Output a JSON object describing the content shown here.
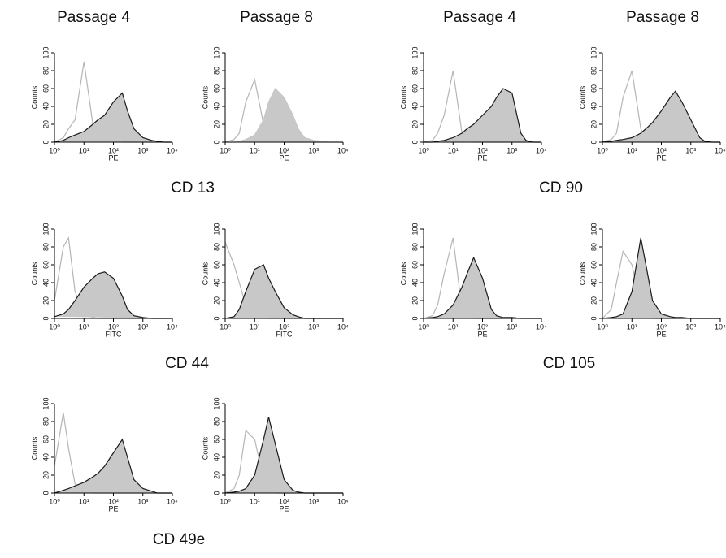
{
  "column_headers": [
    "Passage 4",
    "Passage 8",
    "Passage 4",
    "Passage 8"
  ],
  "marker_labels": [
    "CD 13",
    "CD 90",
    "CD 44",
    "CD 105",
    "CD 49e"
  ],
  "chart_data": [
    {
      "type": "area",
      "x_label": "PE",
      "y_label": "Counts",
      "log_x": true,
      "xlim": [
        1,
        10000
      ],
      "ylim": [
        0,
        100
      ],
      "xticks": [
        {
          "value": 1,
          "label": "10⁰"
        },
        {
          "value": 10,
          "label": "10¹"
        },
        {
          "value": 100,
          "label": "10²"
        },
        {
          "value": 1000,
          "label": "10³"
        },
        {
          "value": 10000,
          "label": "10⁴"
        }
      ],
      "yticks": [
        0,
        20,
        40,
        60,
        80,
        100
      ],
      "x": [
        1,
        2,
        3,
        5,
        10,
        20,
        30,
        50,
        100,
        200,
        300,
        500,
        1000,
        2000,
        3000,
        5000,
        10000
      ],
      "series": [
        {
          "color": "#b5b5b5",
          "fill": "none",
          "values": [
            0,
            5,
            15,
            25,
            90,
            20,
            5,
            2,
            1,
            0,
            0,
            0,
            0,
            0,
            0,
            0,
            0
          ]
        },
        {
          "color": "#1a1a1a",
          "fill": "#c8c8c8",
          "values": [
            0,
            2,
            5,
            8,
            12,
            20,
            25,
            30,
            45,
            55,
            35,
            15,
            5,
            2,
            1,
            0,
            0
          ]
        }
      ]
    },
    {
      "type": "area",
      "x_label": "PE",
      "y_label": "Counts",
      "log_x": true,
      "xlim": [
        1,
        10000
      ],
      "ylim": [
        0,
        100
      ],
      "xticks": [
        {
          "value": 1,
          "label": "10⁰"
        },
        {
          "value": 10,
          "label": "10¹"
        },
        {
          "value": 100,
          "label": "10²"
        },
        {
          "value": 1000,
          "label": "10³"
        },
        {
          "value": 10000,
          "label": "10⁴"
        }
      ],
      "yticks": [
        0,
        20,
        40,
        60,
        80,
        100
      ],
      "x": [
        1,
        2,
        3,
        5,
        10,
        20,
        30,
        50,
        100,
        200,
        300,
        500,
        1000,
        2000,
        3000,
        5000,
        10000
      ],
      "series": [
        {
          "color": "#b5b5b5",
          "fill": "none",
          "values": [
            0,
            3,
            10,
            45,
            70,
            20,
            5,
            2,
            0,
            0,
            0,
            0,
            0,
            0,
            0,
            0,
            0
          ]
        },
        {
          "color": "#c8c8c8",
          "fill": "#c8c8c8",
          "values": [
            0,
            0,
            1,
            3,
            8,
            25,
            45,
            60,
            50,
            30,
            15,
            5,
            2,
            1,
            0,
            0,
            0
          ]
        }
      ]
    },
    {
      "type": "area",
      "x_label": "PE",
      "y_label": "Counts",
      "log_x": true,
      "xlim": [
        1,
        10000
      ],
      "ylim": [
        0,
        100
      ],
      "xticks": [
        {
          "value": 1,
          "label": "10⁰"
        },
        {
          "value": 10,
          "label": "10¹"
        },
        {
          "value": 100,
          "label": "10²"
        },
        {
          "value": 1000,
          "label": "10³"
        },
        {
          "value": 10000,
          "label": "10⁴"
        }
      ],
      "yticks": [
        0,
        20,
        40,
        60,
        80,
        100
      ],
      "x": [
        1,
        2,
        3,
        5,
        10,
        20,
        30,
        50,
        100,
        200,
        300,
        500,
        1000,
        2000,
        3000,
        5000,
        10000
      ],
      "series": [
        {
          "color": "#b5b5b5",
          "fill": "none",
          "values": [
            0,
            2,
            10,
            30,
            80,
            10,
            2,
            0,
            0,
            0,
            0,
            0,
            0,
            0,
            0,
            0,
            0
          ]
        },
        {
          "color": "#1a1a1a",
          "fill": "#c8c8c8",
          "values": [
            0,
            0,
            1,
            2,
            5,
            10,
            15,
            20,
            30,
            40,
            50,
            60,
            55,
            10,
            2,
            0,
            0
          ]
        }
      ]
    },
    {
      "type": "area",
      "x_label": "PE",
      "y_label": "Counts",
      "log_x": true,
      "xlim": [
        1,
        10000
      ],
      "ylim": [
        0,
        100
      ],
      "xticks": [
        {
          "value": 1,
          "label": "10⁰"
        },
        {
          "value": 10,
          "label": "10¹"
        },
        {
          "value": 100,
          "label": "10²"
        },
        {
          "value": 1000,
          "label": "10³"
        },
        {
          "value": 10000,
          "label": "10⁴"
        }
      ],
      "yticks": [
        0,
        20,
        40,
        60,
        80,
        100
      ],
      "x": [
        1,
        2,
        3,
        5,
        10,
        20,
        30,
        50,
        100,
        200,
        300,
        500,
        1000,
        2000,
        3000,
        5000,
        10000
      ],
      "series": [
        {
          "color": "#b5b5b5",
          "fill": "none",
          "values": [
            0,
            3,
            10,
            50,
            80,
            15,
            3,
            1,
            0,
            0,
            0,
            0,
            0,
            0,
            0,
            0,
            0
          ]
        },
        {
          "color": "#1a1a1a",
          "fill": "#c8c8c8",
          "values": [
            0,
            1,
            2,
            3,
            5,
            10,
            15,
            22,
            35,
            50,
            57,
            45,
            25,
            5,
            1,
            0,
            0
          ]
        }
      ]
    },
    {
      "type": "area",
      "x_label": "FITC",
      "y_label": "Counts",
      "log_x": true,
      "xlim": [
        1,
        10000
      ],
      "ylim": [
        0,
        100
      ],
      "xticks": [
        {
          "value": 1,
          "label": "10⁰"
        },
        {
          "value": 10,
          "label": "10¹"
        },
        {
          "value": 100,
          "label": "10²"
        },
        {
          "value": 1000,
          "label": "10³"
        },
        {
          "value": 10000,
          "label": "10⁴"
        }
      ],
      "yticks": [
        0,
        20,
        40,
        60,
        80,
        100
      ],
      "x": [
        1,
        2,
        3,
        5,
        10,
        20,
        30,
        50,
        100,
        200,
        300,
        500,
        1000,
        2000,
        3000,
        5000,
        10000
      ],
      "series": [
        {
          "color": "#b5b5b5",
          "fill": "none",
          "values": [
            20,
            80,
            90,
            30,
            5,
            1,
            0,
            0,
            0,
            0,
            0,
            0,
            0,
            0,
            0,
            0,
            0
          ]
        },
        {
          "color": "#1a1a1a",
          "fill": "#c8c8c8",
          "values": [
            2,
            5,
            10,
            20,
            35,
            45,
            50,
            52,
            45,
            25,
            10,
            3,
            1,
            0,
            0,
            0,
            0
          ]
        }
      ]
    },
    {
      "type": "area",
      "x_label": "FITC",
      "y_label": "Counts",
      "log_x": true,
      "xlim": [
        1,
        10000
      ],
      "ylim": [
        0,
        100
      ],
      "xticks": [
        {
          "value": 1,
          "label": "10⁰"
        },
        {
          "value": 10,
          "label": "10¹"
        },
        {
          "value": 100,
          "label": "10²"
        },
        {
          "value": 1000,
          "label": "10³"
        },
        {
          "value": 10000,
          "label": "10⁴"
        }
      ],
      "yticks": [
        0,
        20,
        40,
        60,
        80,
        100
      ],
      "x": [
        1,
        2,
        3,
        5,
        10,
        20,
        30,
        50,
        100,
        200,
        300,
        500,
        1000,
        2000,
        3000,
        5000,
        10000
      ],
      "series": [
        {
          "color": "#b5b5b5",
          "fill": "none",
          "values": [
            85,
            60,
            40,
            15,
            5,
            2,
            0,
            0,
            0,
            0,
            0,
            0,
            0,
            0,
            0,
            0,
            0
          ]
        },
        {
          "color": "#1a1a1a",
          "fill": "#c8c8c8",
          "values": [
            0,
            2,
            10,
            30,
            55,
            60,
            45,
            30,
            12,
            4,
            2,
            0,
            0,
            0,
            0,
            0,
            0
          ]
        }
      ]
    },
    {
      "type": "area",
      "x_label": "PE",
      "y_label": "Counts",
      "log_x": true,
      "xlim": [
        1,
        10000
      ],
      "ylim": [
        0,
        100
      ],
      "xticks": [
        {
          "value": 1,
          "label": "10⁰"
        },
        {
          "value": 10,
          "label": "10¹"
        },
        {
          "value": 100,
          "label": "10²"
        },
        {
          "value": 1000,
          "label": "10³"
        },
        {
          "value": 10000,
          "label": "10⁴"
        }
      ],
      "yticks": [
        0,
        20,
        40,
        60,
        80,
        100
      ],
      "x": [
        1,
        2,
        3,
        5,
        10,
        20,
        30,
        50,
        100,
        200,
        300,
        500,
        1000,
        2000,
        3000,
        5000,
        10000
      ],
      "series": [
        {
          "color": "#b5b5b5",
          "fill": "none",
          "values": [
            0,
            3,
            15,
            50,
            90,
            10,
            2,
            0,
            0,
            0,
            0,
            0,
            0,
            0,
            0,
            0,
            0
          ]
        },
        {
          "color": "#1a1a1a",
          "fill": "#c8c8c8",
          "values": [
            0,
            1,
            2,
            5,
            15,
            35,
            50,
            68,
            45,
            10,
            3,
            1,
            1,
            0,
            0,
            0,
            0
          ]
        }
      ]
    },
    {
      "type": "area",
      "x_label": "PE",
      "y_label": "Counts",
      "log_x": true,
      "xlim": [
        1,
        10000
      ],
      "ylim": [
        0,
        100
      ],
      "xticks": [
        {
          "value": 1,
          "label": "10⁰"
        },
        {
          "value": 10,
          "label": "10¹"
        },
        {
          "value": 100,
          "label": "10²"
        },
        {
          "value": 1000,
          "label": "10³"
        },
        {
          "value": 10000,
          "label": "10⁴"
        }
      ],
      "yticks": [
        0,
        20,
        40,
        60,
        80,
        100
      ],
      "x": [
        1,
        2,
        3,
        5,
        10,
        20,
        30,
        50,
        100,
        200,
        300,
        500,
        1000,
        2000,
        3000,
        5000,
        10000
      ],
      "series": [
        {
          "color": "#b5b5b5",
          "fill": "none",
          "values": [
            0,
            10,
            40,
            75,
            60,
            15,
            3,
            0,
            0,
            0,
            0,
            0,
            0,
            0,
            0,
            0,
            0
          ]
        },
        {
          "color": "#1a1a1a",
          "fill": "#c8c8c8",
          "values": [
            0,
            1,
            2,
            5,
            30,
            90,
            60,
            20,
            5,
            2,
            1,
            1,
            0,
            0,
            0,
            0,
            0
          ]
        }
      ]
    },
    {
      "type": "area",
      "x_label": "PE",
      "y_label": "Counts",
      "log_x": true,
      "xlim": [
        1,
        10000
      ],
      "ylim": [
        0,
        100
      ],
      "xticks": [
        {
          "value": 1,
          "label": "10⁰"
        },
        {
          "value": 10,
          "label": "10¹"
        },
        {
          "value": 100,
          "label": "10²"
        },
        {
          "value": 1000,
          "label": "10³"
        },
        {
          "value": 10000,
          "label": "10⁴"
        }
      ],
      "yticks": [
        0,
        20,
        40,
        60,
        80,
        100
      ],
      "x": [
        1,
        2,
        3,
        5,
        10,
        20,
        30,
        50,
        100,
        200,
        300,
        500,
        1000,
        2000,
        3000,
        5000,
        10000
      ],
      "series": [
        {
          "color": "#b5b5b5",
          "fill": "none",
          "values": [
            30,
            90,
            50,
            10,
            2,
            0,
            0,
            0,
            0,
            0,
            0,
            0,
            0,
            0,
            0,
            0,
            0
          ]
        },
        {
          "color": "#1a1a1a",
          "fill": "#c8c8c8",
          "values": [
            0,
            3,
            5,
            8,
            12,
            18,
            22,
            30,
            45,
            60,
            40,
            15,
            5,
            2,
            0,
            0,
            0
          ]
        }
      ]
    },
    {
      "type": "area",
      "x_label": "PE",
      "y_label": "Counts",
      "log_x": true,
      "xlim": [
        1,
        10000
      ],
      "ylim": [
        0,
        100
      ],
      "xticks": [
        {
          "value": 1,
          "label": "10⁰"
        },
        {
          "value": 10,
          "label": "10¹"
        },
        {
          "value": 100,
          "label": "10²"
        },
        {
          "value": 1000,
          "label": "10³"
        },
        {
          "value": 10000,
          "label": "10⁴"
        }
      ],
      "yticks": [
        0,
        20,
        40,
        60,
        80,
        100
      ],
      "x": [
        1,
        2,
        3,
        5,
        10,
        20,
        30,
        50,
        100,
        200,
        300,
        500,
        1000,
        2000,
        3000,
        5000,
        10000
      ],
      "series": [
        {
          "color": "#b5b5b5",
          "fill": "none",
          "values": [
            0,
            5,
            20,
            70,
            60,
            15,
            3,
            0,
            0,
            0,
            0,
            0,
            0,
            0,
            0,
            0,
            0
          ]
        },
        {
          "color": "#1a1a1a",
          "fill": "#c8c8c8",
          "values": [
            0,
            1,
            2,
            5,
            20,
            60,
            85,
            55,
            15,
            3,
            1,
            0,
            0,
            0,
            0,
            0,
            0
          ]
        }
      ]
    }
  ]
}
